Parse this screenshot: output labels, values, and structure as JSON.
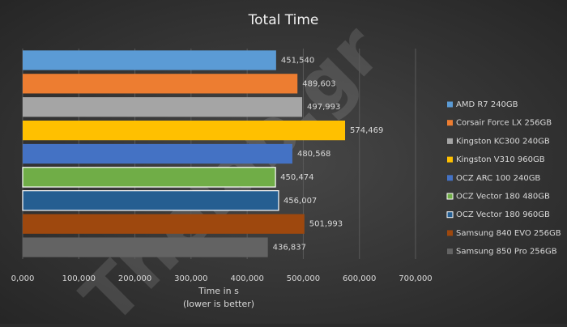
{
  "chart_data": {
    "type": "bar",
    "orientation": "horizontal",
    "title": "Total Time",
    "xlabel": [
      "Time in s",
      "(lower is better)"
    ],
    "watermark": "Thelab.gr",
    "xlim": [
      0,
      700000
    ],
    "xticks": [
      {
        "value": 0,
        "label": "0,000"
      },
      {
        "value": 100000,
        "label": "100,000"
      },
      {
        "value": 200000,
        "label": "200,000"
      },
      {
        "value": 300000,
        "label": "300,000"
      },
      {
        "value": 400000,
        "label": "400,000"
      },
      {
        "value": 500000,
        "label": "500,000"
      },
      {
        "value": 600000,
        "label": "600,000"
      },
      {
        "value": 700000,
        "label": "700,000"
      }
    ],
    "grid": true,
    "legend": "right",
    "series": [
      {
        "name": "AMD R7 240GB",
        "color": "#5b9bd5",
        "values": [
          451540
        ],
        "value_labels": [
          "451,540"
        ]
      },
      {
        "name": "Corsair Force LX 256GB",
        "color": "#ed7d31",
        "values": [
          489603
        ],
        "value_labels": [
          "489,603"
        ]
      },
      {
        "name": "Kingston KC300 240GB",
        "color": "#a5a5a5",
        "values": [
          497993
        ],
        "value_labels": [
          "497,993"
        ]
      },
      {
        "name": "Kingston V310 960GB",
        "color": "#ffc000",
        "values": [
          574469
        ],
        "value_labels": [
          "574,469"
        ]
      },
      {
        "name": "OCZ ARC 100 240GB",
        "color": "#4472c4",
        "values": [
          480568
        ],
        "value_labels": [
          "480,568"
        ]
      },
      {
        "name": "OCZ Vector 180 480GB",
        "color": "#70ad47",
        "border": "#ffffff",
        "values": [
          450474
        ],
        "value_labels": [
          "450,474"
        ]
      },
      {
        "name": "OCZ Vector 180 960GB",
        "color": "#255e91",
        "border": "#ffffff",
        "values": [
          456007
        ],
        "value_labels": [
          "456,007"
        ]
      },
      {
        "name": "Samsung 840 EVO 256GB",
        "color": "#9e480e",
        "values": [
          501993
        ],
        "value_labels": [
          "501,993"
        ]
      },
      {
        "name": "Samsung 850 Pro 256GB",
        "color": "#636363",
        "values": [
          436837
        ],
        "value_labels": [
          "436,837"
        ]
      }
    ]
  }
}
